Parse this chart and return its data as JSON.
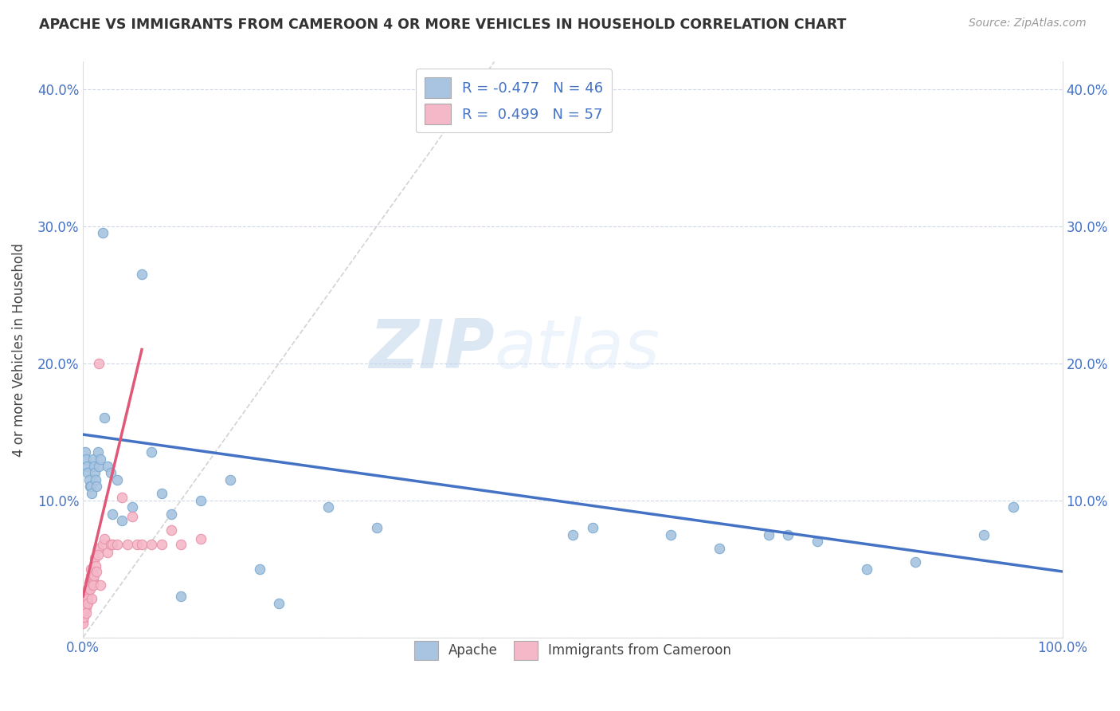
{
  "title": "APACHE VS IMMIGRANTS FROM CAMEROON 4 OR MORE VEHICLES IN HOUSEHOLD CORRELATION CHART",
  "source": "Source: ZipAtlas.com",
  "ylabel": "4 or more Vehicles in Household",
  "xlim": [
    0,
    1.0
  ],
  "ylim": [
    0,
    0.42
  ],
  "xticks": [
    0.0,
    1.0
  ],
  "xticklabels": [
    "0.0%",
    "100.0%"
  ],
  "yticks": [
    0.0,
    0.1,
    0.2,
    0.3,
    0.4
  ],
  "yticklabels": [
    "",
    "10.0%",
    "20.0%",
    "30.0%",
    "40.0%"
  ],
  "apache_color": "#a8c4e0",
  "cameroon_color": "#f4b8c8",
  "apache_edge_color": "#7aaad0",
  "cameroon_edge_color": "#e890a8",
  "apache_line_color": "#4472c4",
  "cameroon_line_color": "#e05878",
  "ref_line_color": "#c8c8c8",
  "watermark_zip": "ZIP",
  "watermark_atlas": "atlas",
  "apache_x": [
    0.002,
    0.003,
    0.004,
    0.005,
    0.006,
    0.007,
    0.008,
    0.009,
    0.01,
    0.011,
    0.012,
    0.013,
    0.014,
    0.015,
    0.016,
    0.018,
    0.02,
    0.022,
    0.025,
    0.028,
    0.03,
    0.035,
    0.04,
    0.05,
    0.06,
    0.07,
    0.08,
    0.09,
    0.1,
    0.12,
    0.15,
    0.18,
    0.2,
    0.25,
    0.3,
    0.5,
    0.52,
    0.6,
    0.65,
    0.7,
    0.72,
    0.75,
    0.8,
    0.85,
    0.92,
    0.95
  ],
  "apache_y": [
    0.135,
    0.13,
    0.125,
    0.12,
    0.115,
    0.11,
    0.11,
    0.105,
    0.13,
    0.125,
    0.12,
    0.115,
    0.11,
    0.135,
    0.125,
    0.13,
    0.295,
    0.16,
    0.125,
    0.12,
    0.09,
    0.115,
    0.085,
    0.095,
    0.265,
    0.135,
    0.105,
    0.09,
    0.03,
    0.1,
    0.115,
    0.05,
    0.025,
    0.095,
    0.08,
    0.075,
    0.08,
    0.075,
    0.065,
    0.075,
    0.075,
    0.07,
    0.05,
    0.055,
    0.075,
    0.095
  ],
  "cameroon_x": [
    0.0,
    0.0,
    0.0,
    0.0,
    0.0,
    0.001,
    0.001,
    0.001,
    0.001,
    0.002,
    0.002,
    0.002,
    0.003,
    0.003,
    0.003,
    0.003,
    0.004,
    0.004,
    0.005,
    0.005,
    0.005,
    0.005,
    0.006,
    0.006,
    0.007,
    0.007,
    0.007,
    0.008,
    0.008,
    0.009,
    0.01,
    0.01,
    0.01,
    0.011,
    0.012,
    0.013,
    0.014,
    0.015,
    0.015,
    0.016,
    0.018,
    0.02,
    0.022,
    0.025,
    0.028,
    0.03,
    0.035,
    0.04,
    0.045,
    0.05,
    0.055,
    0.06,
    0.07,
    0.08,
    0.09,
    0.1,
    0.12
  ],
  "cameroon_y": [
    0.02,
    0.018,
    0.015,
    0.012,
    0.01,
    0.022,
    0.02,
    0.018,
    0.015,
    0.025,
    0.022,
    0.02,
    0.028,
    0.025,
    0.022,
    0.018,
    0.03,
    0.028,
    0.035,
    0.032,
    0.028,
    0.025,
    0.04,
    0.038,
    0.042,
    0.038,
    0.035,
    0.05,
    0.045,
    0.028,
    0.042,
    0.04,
    0.038,
    0.045,
    0.058,
    0.052,
    0.048,
    0.065,
    0.06,
    0.2,
    0.038,
    0.068,
    0.072,
    0.062,
    0.068,
    0.068,
    0.068,
    0.102,
    0.068,
    0.088,
    0.068,
    0.068,
    0.068,
    0.068,
    0.078,
    0.068,
    0.072
  ],
  "apache_line_x": [
    0.0,
    1.0
  ],
  "apache_line_y": [
    0.148,
    0.048
  ],
  "cameroon_line_x": [
    0.0,
    0.06
  ],
  "cameroon_line_y": [
    0.03,
    0.21
  ]
}
